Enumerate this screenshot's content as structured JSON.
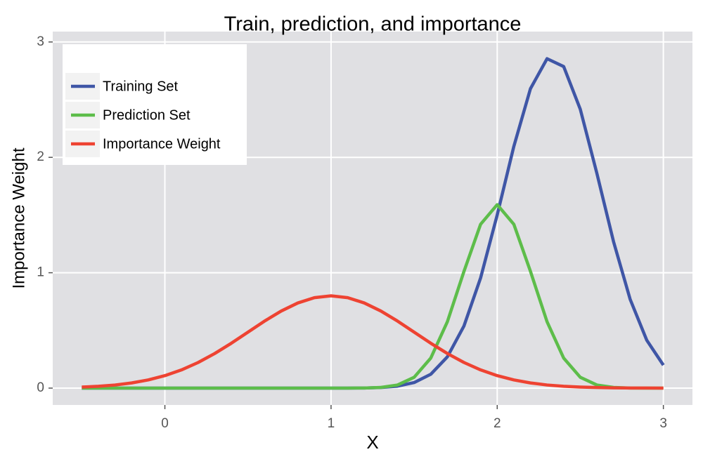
{
  "chart_data": {
    "type": "line",
    "title": "Train, prediction, and importance",
    "xlabel": "X",
    "ylabel": "Importance Weight",
    "x": [
      -0.5,
      -0.4,
      -0.3,
      -0.2,
      -0.1,
      0,
      0.1,
      0.2,
      0.3,
      0.4,
      0.5,
      0.6,
      0.7,
      0.8,
      0.9,
      1,
      1.1,
      1.2,
      1.3,
      1.4,
      1.5,
      1.6,
      1.7,
      1.8,
      1.9,
      2,
      2.1,
      2.2,
      2.3,
      2.4,
      2.5,
      2.6,
      2.7,
      2.8,
      2.9,
      3
    ],
    "series": [
      {
        "name": "Training Set",
        "color": "#3f56a6",
        "values": [
          0,
          0,
          0,
          0,
          0,
          0,
          0,
          0,
          0,
          0,
          0,
          0,
          0,
          0,
          0,
          0,
          0,
          0.001,
          0.005,
          0.017,
          0.048,
          0.12,
          0.271,
          0.539,
          0.955,
          1.501,
          2.095,
          2.595,
          2.855,
          2.787,
          2.417,
          1.86,
          1.27,
          0.77,
          0.415,
          0.199
        ]
      },
      {
        "name": "Prediction Set",
        "color": "#5dbd4a",
        "values": [
          0,
          0,
          0,
          0,
          0,
          0,
          0,
          0,
          0,
          0,
          0,
          0,
          0,
          0,
          0,
          0,
          0,
          0.001,
          0.006,
          0.027,
          0.094,
          0.26,
          0.575,
          1.012,
          1.42,
          1.59,
          1.42,
          1.012,
          0.575,
          0.26,
          0.094,
          0.027,
          0.006,
          0.001,
          0,
          0
        ]
      },
      {
        "name": "Importance Weight",
        "color": "#ee4332",
        "values": [
          0.009,
          0.016,
          0.027,
          0.045,
          0.071,
          0.108,
          0.158,
          0.222,
          0.3,
          0.389,
          0.485,
          0.581,
          0.668,
          0.738,
          0.784,
          0.8,
          0.784,
          0.738,
          0.668,
          0.581,
          0.485,
          0.389,
          0.3,
          0.222,
          0.158,
          0.108,
          0.071,
          0.045,
          0.027,
          0.016,
          0.009,
          0.005,
          0.002,
          0.001,
          0.001,
          0
        ]
      }
    ],
    "xlim": [
      -0.675,
      3.175
    ],
    "xticks": [
      0,
      1,
      2,
      3
    ],
    "ylim": [
      -0.146,
      3.09
    ],
    "yticks": [
      0,
      1,
      2,
      3
    ],
    "grid": true,
    "legend": "top-left"
  }
}
